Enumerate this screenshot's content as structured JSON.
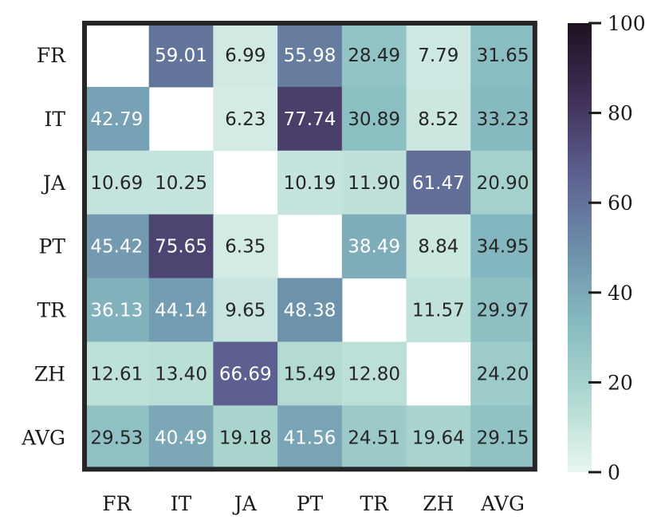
{
  "chart_data": {
    "type": "heatmap",
    "title": "",
    "xlabel": "",
    "ylabel": "",
    "rows": [
      "FR",
      "IT",
      "JA",
      "PT",
      "TR",
      "ZH",
      "AVG"
    ],
    "columns": [
      "FR",
      "IT",
      "JA",
      "PT",
      "TR",
      "ZH",
      "AVG"
    ],
    "values": [
      [
        null,
        59.01,
        6.99,
        55.98,
        28.49,
        7.79,
        31.65
      ],
      [
        42.79,
        null,
        6.23,
        77.74,
        30.89,
        8.52,
        33.23
      ],
      [
        10.69,
        10.25,
        null,
        10.19,
        11.9,
        61.47,
        20.9
      ],
      [
        45.42,
        75.65,
        6.35,
        null,
        38.49,
        8.84,
        34.95
      ],
      [
        36.13,
        44.14,
        9.65,
        48.38,
        null,
        11.57,
        29.97
      ],
      [
        12.61,
        13.4,
        66.69,
        15.49,
        12.8,
        null,
        24.2
      ],
      [
        29.53,
        40.49,
        19.18,
        41.56,
        24.51,
        19.64,
        29.15
      ]
    ],
    "value_labels": [
      [
        "",
        "59.01",
        "6.99",
        "55.98",
        "28.49",
        "7.79",
        "31.65"
      ],
      [
        "42.79",
        "",
        "6.23",
        "77.74",
        "30.89",
        "8.52",
        "33.23"
      ],
      [
        "10.69",
        "10.25",
        "",
        "10.19",
        "11.90",
        "61.47",
        "20.90"
      ],
      [
        "45.42",
        "75.65",
        "6.35",
        "",
        "38.49",
        "8.84",
        "34.95"
      ],
      [
        "36.13",
        "44.14",
        "9.65",
        "48.38",
        "",
        "11.57",
        "29.97"
      ],
      [
        "12.61",
        "13.40",
        "66.69",
        "15.49",
        "12.80",
        "",
        "24.20"
      ],
      [
        "29.53",
        "40.49",
        "19.18",
        "41.56",
        "24.51",
        "19.64",
        "29.15"
      ]
    ],
    "colorbar": {
      "range": [
        0,
        100
      ],
      "ticks": [
        0,
        20,
        40,
        60,
        80,
        100
      ],
      "colors": [
        "#e8f6f0",
        "#afd9d1",
        "#86bac0",
        "#6c8eaa",
        "#5c5f8f",
        "#3f2f57",
        "#1b1221"
      ]
    },
    "grid": false,
    "legend": "colorbar-right"
  }
}
